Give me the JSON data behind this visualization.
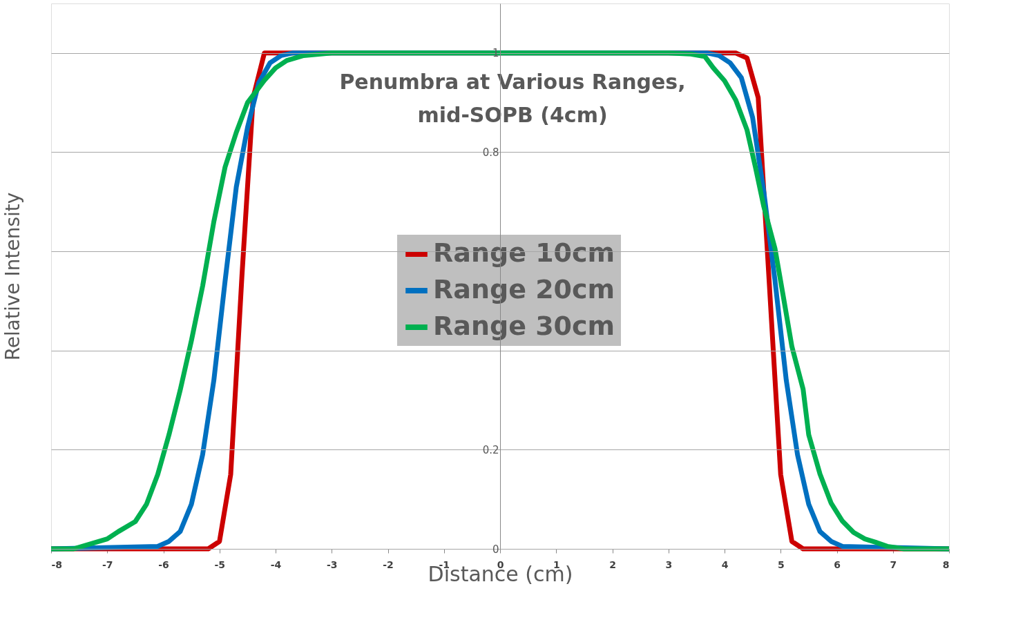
{
  "chart_data": {
    "type": "line",
    "title": "Penumbra at Various Ranges,\nmid-SOPB (4cm)",
    "xlabel": "Distance (cm)",
    "ylabel": "Relative Intensity",
    "xlim": [
      -8,
      8
    ],
    "xticks": [
      -8,
      -7,
      -6,
      -5,
      -4,
      -3,
      -2,
      -1,
      0,
      1,
      2,
      3,
      4,
      5,
      6,
      7,
      8
    ],
    "ylim": [
      0,
      1.1
    ],
    "yticks": [
      0,
      0.2,
      {
        "value": 0.4,
        "label": null
      },
      {
        "value": 0.6,
        "label": null
      },
      0.8,
      1
    ],
    "grid": "y",
    "legend": "center",
    "marker": "none",
    "line_style": "solid",
    "series": [
      {
        "name": "Range 10cm",
        "color": "#cc0000",
        "x": [
          -8,
          -5.2,
          -5.0,
          -4.8,
          -4.6,
          -4.4,
          -4.2,
          4.2,
          4.4,
          4.6,
          4.8,
          5.0,
          5.2,
          5.4,
          8
        ],
        "values": [
          0,
          0,
          0.015,
          0.15,
          0.55,
          0.91,
          1.0,
          1.0,
          0.99,
          0.91,
          0.53,
          0.15,
          0.015,
          0,
          0
        ]
      },
      {
        "name": "Range 20cm",
        "color": "#0070c0",
        "x": [
          -8,
          -6.1,
          -5.9,
          -5.7,
          -5.5,
          -5.3,
          -5.1,
          -4.9,
          -4.7,
          -4.5,
          -4.3,
          -4.1,
          -3.9,
          -3.7,
          3.7,
          3.9,
          4.1,
          4.3,
          4.5,
          4.7,
          4.9,
          5.1,
          5.3,
          5.5,
          5.7,
          5.9,
          6.1,
          8
        ],
        "values": [
          0,
          0.005,
          0.015,
          0.035,
          0.09,
          0.19,
          0.34,
          0.54,
          0.73,
          0.85,
          0.94,
          0.98,
          0.995,
          1.0,
          1.0,
          0.995,
          0.98,
          0.95,
          0.87,
          0.72,
          0.54,
          0.34,
          0.19,
          0.09,
          0.035,
          0.015,
          0.005,
          0
        ]
      },
      {
        "name": "Range 30cm",
        "color": "#00b050",
        "x": [
          -8,
          -7.6,
          -7.3,
          -7.0,
          -6.8,
          -6.5,
          -6.3,
          -6.1,
          -5.9,
          -5.7,
          -5.5,
          -5.3,
          -5.1,
          -4.9,
          -4.7,
          -4.5,
          -4.2,
          -4.0,
          -3.8,
          -3.5,
          -3.0,
          3.0,
          3.4,
          3.65,
          3.8,
          4.0,
          4.2,
          4.4,
          4.55,
          4.7,
          4.9,
          5.05,
          5.2,
          5.4,
          5.5,
          5.7,
          5.9,
          6.1,
          6.3,
          6.5,
          6.7,
          6.9,
          7.2,
          8
        ],
        "values": [
          0,
          0,
          0.01,
          0.02,
          0.035,
          0.055,
          0.09,
          0.15,
          0.23,
          0.32,
          0.42,
          0.53,
          0.66,
          0.77,
          0.84,
          0.9,
          0.945,
          0.97,
          0.985,
          0.995,
          1.0,
          1.0,
          0.998,
          0.993,
          0.97,
          0.944,
          0.905,
          0.845,
          0.77,
          0.69,
          0.605,
          0.507,
          0.408,
          0.322,
          0.23,
          0.151,
          0.092,
          0.056,
          0.033,
          0.02,
          0.013,
          0.005,
          0,
          0
        ]
      }
    ]
  }
}
